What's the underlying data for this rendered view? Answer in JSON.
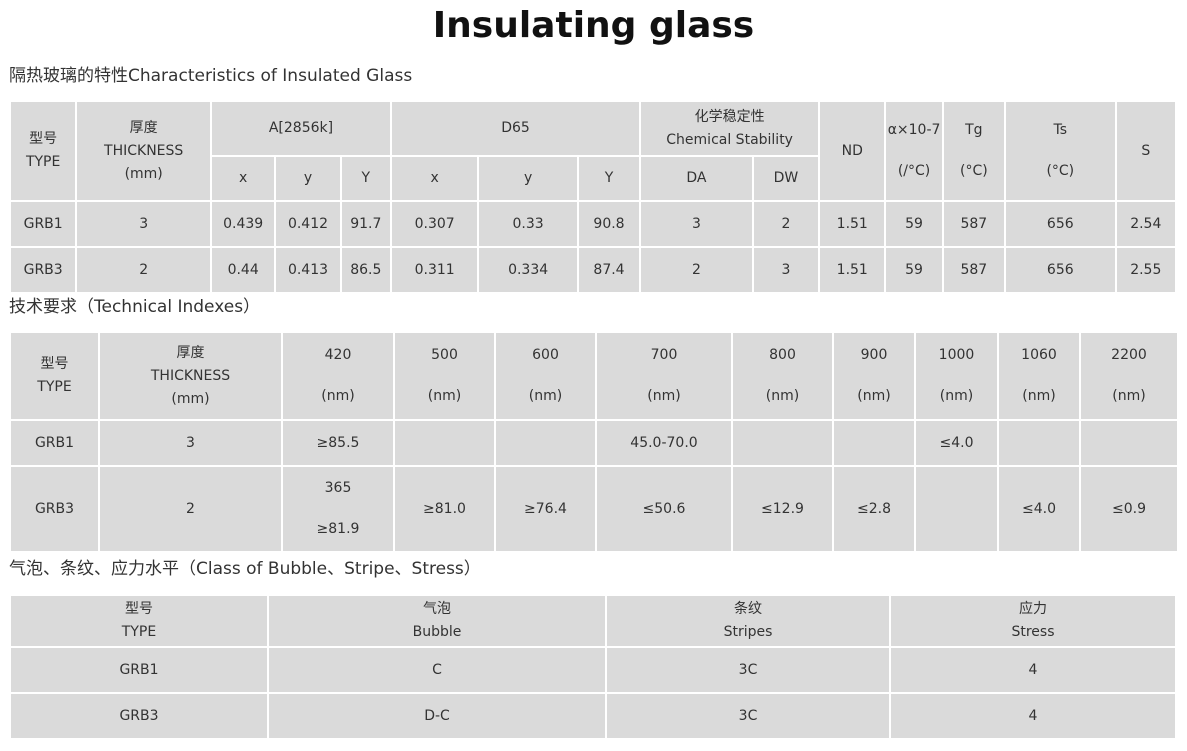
{
  "title": "Insulating glass",
  "sections": {
    "characteristics": {
      "heading": "隔热玻璃的特性Characteristics of Insulated Glass",
      "headers": {
        "type_cn": "型号",
        "type_en": "TYPE",
        "thickness_cn": "厚度",
        "thickness_en": "THICKNESS",
        "thickness_unit": "(mm)",
        "a2856k": "A[2856k]",
        "d65": "D65",
        "chem_cn": "化学稳定性",
        "chem_en": "Chemical Stability",
        "nd": "ND",
        "alpha": "α×10-7",
        "alpha_unit": "(/°C)",
        "tg": "Tg",
        "tg_unit": "(°C)",
        "ts": "Ts",
        "ts_unit": "(°C)",
        "s": "S",
        "x": "x",
        "y": "y",
        "Y": "Y",
        "da": "DA",
        "dw": "DW"
      },
      "rows": [
        {
          "type": "GRB1",
          "thickness": "3",
          "a_x": "0.439",
          "a_y": "0.412",
          "a_Y": "91.7",
          "d_x": "0.307",
          "d_y": "0.33",
          "d_Y": "90.8",
          "da": "3",
          "dw": "2",
          "nd": "1.51",
          "alpha": "59",
          "tg": "587",
          "ts": "656",
          "s": "2.54"
        },
        {
          "type": "GRB3",
          "thickness": "2",
          "a_x": "0.44",
          "a_y": "0.413",
          "a_Y": "86.5",
          "d_x": "0.311",
          "d_y": "0.334",
          "d_Y": "87.4",
          "da": "2",
          "dw": "3",
          "nd": "1.51",
          "alpha": "59",
          "tg": "587",
          "ts": "656",
          "s": "2.55"
        }
      ]
    },
    "technical": {
      "heading": "技术要求（Technical Indexes）",
      "headers": {
        "type_cn": "型号",
        "type_en": "TYPE",
        "thickness_cn": "厚度",
        "thickness_en": "THICKNESS",
        "thickness_unit": "(mm)",
        "unit": "(nm)",
        "wavelengths": [
          "420",
          "500",
          "600",
          "700",
          "800",
          "900",
          "1000",
          "1060",
          "2200"
        ]
      },
      "rows": [
        {
          "type": "GRB1",
          "thickness": "3",
          "v420": "≥85.5",
          "v700": "45.0-70.0",
          "v1000": "≤4.0"
        },
        {
          "type": "GRB3",
          "thickness": "2",
          "v420_top": "365",
          "v420_bottom": "≥81.9",
          "v500": "≥81.0",
          "v600": "≥76.4",
          "v700": "≤50.6",
          "v800": "≤12.9",
          "v900": "≤2.8",
          "v1060": "≤4.0",
          "v2200": "≤0.9"
        }
      ]
    },
    "bubble": {
      "heading": "气泡、条纹、应力水平（Class of Bubble、Stripe、Stress）",
      "headers": {
        "type_cn": "型号",
        "type_en": "TYPE",
        "bubble_cn": "气泡",
        "bubble_en": "Bubble",
        "stripes_cn": "条纹",
        "stripes_en": "Stripes",
        "stress_cn": "应力",
        "stress_en": "Stress"
      },
      "rows": [
        {
          "type": "GRB1",
          "bubble": "C",
          "stripes": "3C",
          "stress": "4"
        },
        {
          "type": "GRB3",
          "bubble": "D-C",
          "stripes": "3C",
          "stress": "4"
        }
      ]
    }
  }
}
